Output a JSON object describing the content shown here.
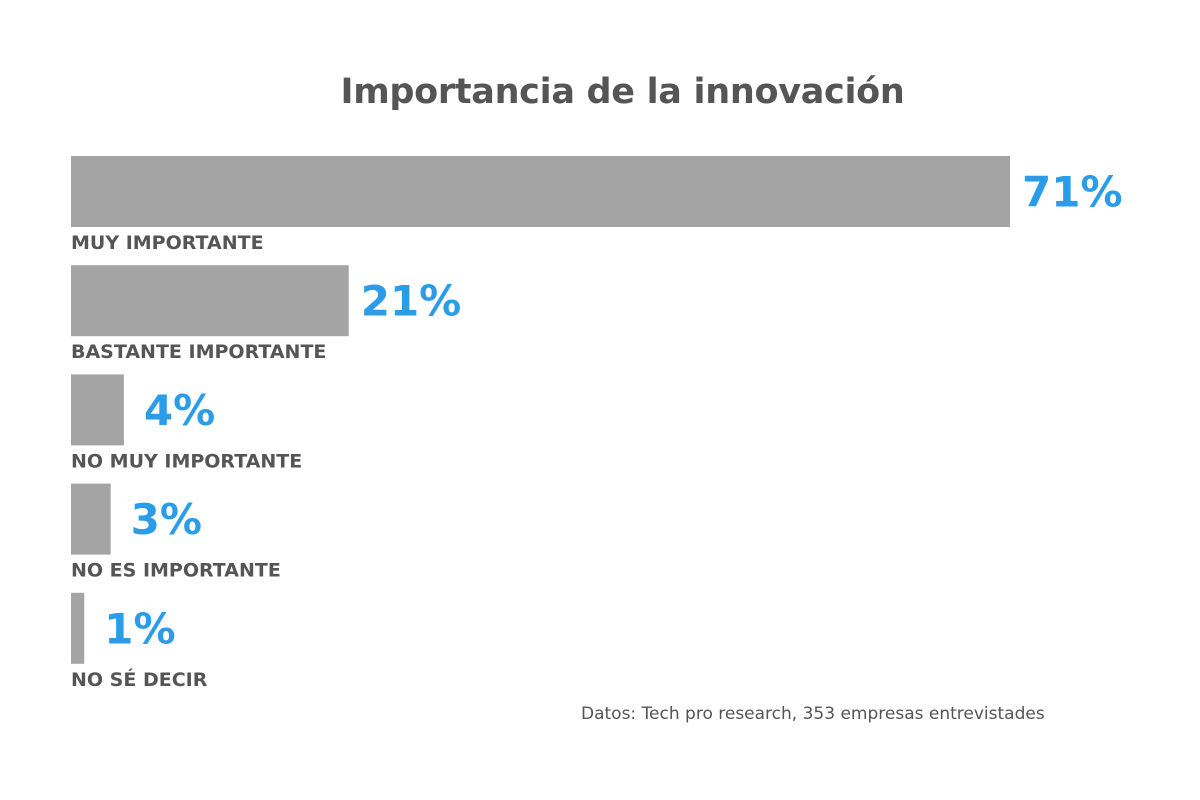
{
  "chart_data": {
    "type": "bar",
    "orientation": "horizontal",
    "title": "Importancia de la innovación",
    "categories": [
      "MUY IMPORTANTE",
      "BASTANTE IMPORTANTE",
      "NO MUY IMPORTANTE",
      "NO ES IMPORTANTE",
      "NO SÉ DECIR"
    ],
    "values": [
      71,
      21,
      4,
      3,
      1
    ],
    "value_labels": [
      "71%",
      "21%",
      "4%",
      "3%",
      "1%"
    ],
    "unit": "%",
    "xlabel": "",
    "ylabel": "",
    "grid": false,
    "legend": "none",
    "colors": {
      "bar": "#a4a4a4",
      "value_label": "#2b9de8",
      "text": "#555555"
    }
  },
  "source_note": "Datos: Tech pro research, 353 empresas entrevistades"
}
